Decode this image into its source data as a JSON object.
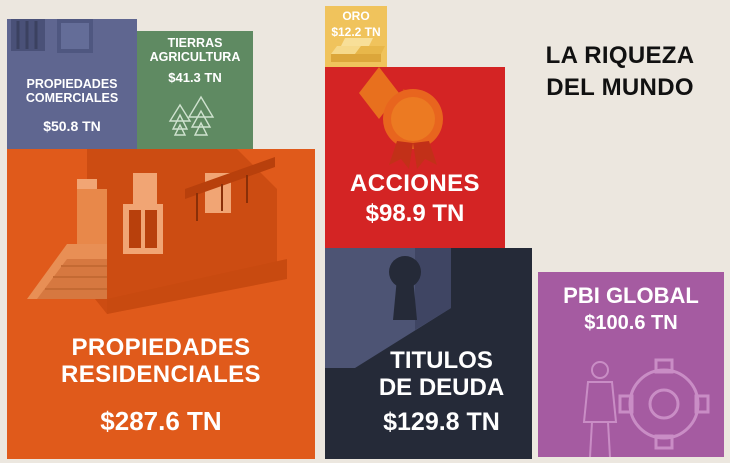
{
  "title": [
    "LA RIQUEZA",
    "DEL MUNDO"
  ],
  "unit": "TN",
  "colors": {
    "background": "#ece7df",
    "propiedades_comerciales": "#5f6690",
    "tierras_agricultura": "#5f8a62",
    "propiedades_residenciales": "#e05a1b",
    "oro": "#f0c35c",
    "acciones": "#d42424",
    "titulos_de_deuda": "#252a38",
    "pbi_global": "#a55ba1"
  },
  "blocks": {
    "comercial": {
      "name": [
        "PROPIEDADES",
        "COMERCIALES"
      ],
      "amount": "$50.8 TN",
      "icon": "building-window-icon"
    },
    "tierras": {
      "name": [
        "TIERRAS",
        "AGRICULTURA"
      ],
      "amount": "$41.3 TN",
      "icon": "pine-trees-icon"
    },
    "residencial": {
      "name": [
        "PROPIEDADES",
        "RESIDENCIALES"
      ],
      "amount": "$287.6 TN",
      "icon": "house-icon"
    },
    "oro": {
      "name": [
        "ORO"
      ],
      "amount": "$12.2 TN",
      "icon": "gold-bars-icon"
    },
    "acciones": {
      "name": [
        "ACCIONES"
      ],
      "amount": "$98.9 TN",
      "icon": "certificate-seal-icon"
    },
    "titulos": {
      "name": [
        "TITULOS",
        "DE DEUDA"
      ],
      "amount": "$129.8 TN",
      "icon": "keyhole-icon"
    },
    "pbi": {
      "name": [
        "PBI GLOBAL"
      ],
      "amount": "$100.6 TN",
      "icon": "worker-gear-icon"
    }
  },
  "chart_data": {
    "type": "treemap",
    "title": "LA RIQUEZA DEL MUNDO",
    "unit": "TN",
    "categories": [
      "PROPIEDADES COMERCIALES",
      "TIERRAS AGRICULTURA",
      "PROPIEDADES RESIDENCIALES",
      "ORO",
      "ACCIONES",
      "TITULOS DE DEUDA",
      "PBI GLOBAL"
    ],
    "values": [
      50.8,
      41.3,
      287.6,
      12.2,
      98.9,
      129.8,
      100.6
    ]
  }
}
